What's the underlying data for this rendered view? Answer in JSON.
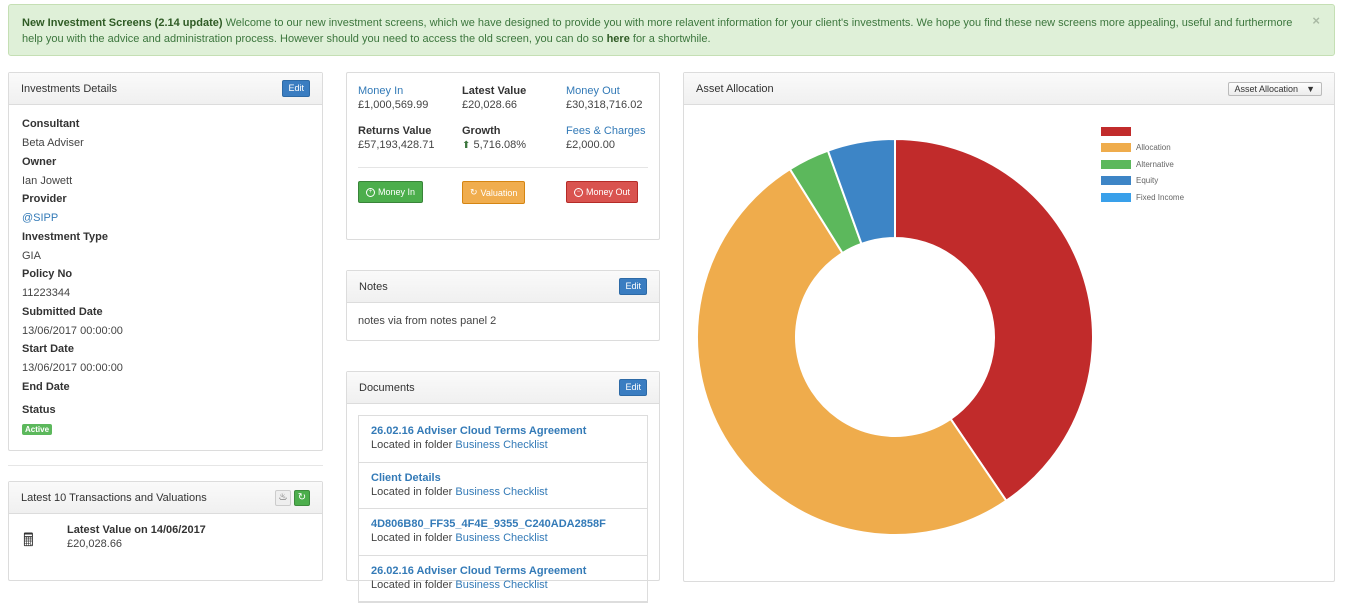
{
  "alert": {
    "title": "New Investment Screens (2.14 update)",
    "text_1": " Welcome to our new investment screens, which we have designed to provide you with more relavent information for your client's investments. We hope you find these new screens more appealing, useful and furthermore help you with the advice and administration process. However should you need to access the old screen, you can do so ",
    "here": "here",
    "text_2": " for a shortwhile.",
    "close": "×"
  },
  "details": {
    "title": "Investments Details",
    "edit": "Edit",
    "fields": [
      {
        "label": "Consultant",
        "value": "Beta Adviser"
      },
      {
        "label": "Owner",
        "value": "Ian Jowett"
      },
      {
        "label": "Provider",
        "value": "@SIPP"
      },
      {
        "label": "Investment Type",
        "value": "GIA"
      },
      {
        "label": "Policy No",
        "value": "11223344"
      },
      {
        "label": "Submitted Date",
        "value": "13/06/2017 00:00:00"
      },
      {
        "label": "Start Date",
        "value": "13/06/2017 00:00:00"
      },
      {
        "label": "End Date",
        "value": ""
      },
      {
        "label": "Status",
        "value": "Active"
      }
    ]
  },
  "transactions": {
    "title": "Latest 10 Transactions and Valuations",
    "item_title": "Latest Value on 14/06/2017",
    "item_value": "£20,028.66"
  },
  "summary": {
    "money_in_label": "Money In",
    "money_in_value": "£1,000,569.99",
    "latest_value_label": "Latest Value",
    "latest_value_value": "£20,028.66",
    "money_out_label": "Money Out",
    "money_out_value": "£30,318,716.02",
    "returns_label": "Returns Value",
    "returns_value": "£57,193,428.71",
    "growth_label": "Growth",
    "growth_value": "5,716.08%",
    "fees_label": "Fees & Charges",
    "fees_value": "£2,000.00",
    "btn_money_in": "Money In",
    "btn_valuation": "Valuation",
    "btn_money_out": "Money Out"
  },
  "notes": {
    "title": "Notes",
    "edit": "Edit",
    "text": "notes via from notes panel 2"
  },
  "documents": {
    "title": "Documents",
    "edit": "Edit",
    "folder_prefix": "Located in folder ",
    "items": [
      {
        "title": "26.02.16 Adviser Cloud Terms Agreement",
        "folder": "Business Checklist"
      },
      {
        "title": "Client Details",
        "folder": "Business Checklist"
      },
      {
        "title": "4D806B80_FF35_4F4E_9355_C240ADA2858F",
        "folder": "Business Checklist"
      },
      {
        "title": "26.02.16 Adviser Cloud Terms Agreement",
        "folder": "Business Checklist"
      }
    ]
  },
  "asset": {
    "title": "Asset Allocation",
    "dropdown": "Asset Allocation",
    "legend": [
      {
        "name": "",
        "color": "#c12b2b"
      },
      {
        "name": "Allocation",
        "color": "#efac4c"
      },
      {
        "name": "Alternative",
        "color": "#5cb85c"
      },
      {
        "name": "Equity",
        "color": "#3d85c6"
      },
      {
        "name": "Fixed Income",
        "color": "#39a0ea"
      }
    ],
    "slices": [
      {
        "name": "",
        "value": 40.5,
        "color": "#c12b2b"
      },
      {
        "name": "Allocation",
        "value": 50.6,
        "color": "#efac4c"
      },
      {
        "name": "Alternative",
        "value": 3.4,
        "color": "#5cb85c"
      },
      {
        "name": "Equity",
        "value": 5.5,
        "color": "#3d85c6"
      }
    ]
  }
}
